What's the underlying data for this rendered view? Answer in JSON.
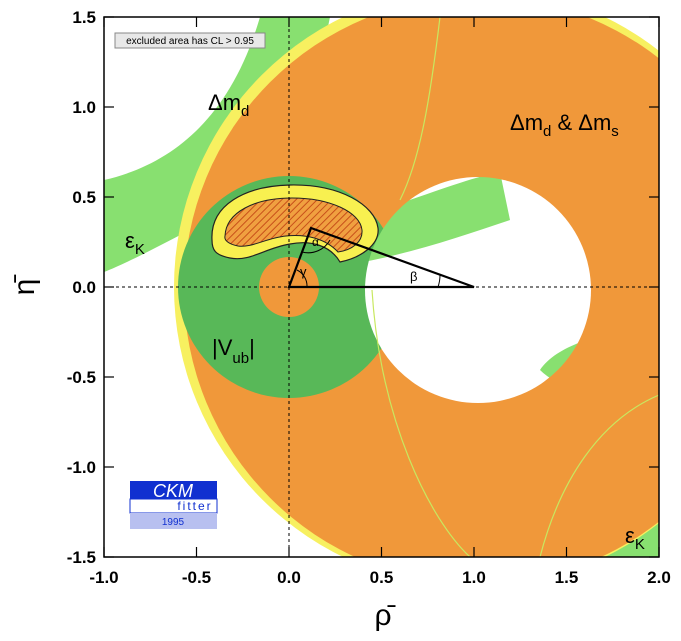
{
  "chart_data": {
    "type": "region",
    "xlabel": "ρ̄",
    "ylabel": "η̄",
    "xlim": [
      -1,
      2
    ],
    "ylim": [
      -1.5,
      1.5
    ],
    "xticks": [
      {
        "value": -1,
        "label": "-1.0"
      },
      {
        "value": -0.5,
        "label": "-0.5"
      },
      {
        "value": 0,
        "label": "0.0"
      },
      {
        "value": 0.5,
        "label": "0.5"
      },
      {
        "value": 1,
        "label": "1.0"
      },
      {
        "value": 1.5,
        "label": "1.5"
      },
      {
        "value": 2,
        "label": "2.0"
      }
    ],
    "yticks": [
      {
        "value": -1.5,
        "label": "-1.5"
      },
      {
        "value": -1,
        "label": "-1.0"
      },
      {
        "value": -0.5,
        "label": "-0.5"
      },
      {
        "value": 0,
        "label": "0.0"
      },
      {
        "value": 0.5,
        "label": "0.5"
      },
      {
        "value": 1,
        "label": "1.0"
      },
      {
        "value": 1.5,
        "label": "1.5"
      }
    ],
    "annotations": {
      "legend_note": "excluded area has CL > 0.95",
      "dmd": [
        "Δm",
        "d"
      ],
      "dmd_dms": [
        "Δm",
        "d",
        " & Δm",
        "s"
      ],
      "epsk_left": [
        "ε",
        "K"
      ],
      "epsk_right": [
        "ε",
        "K"
      ],
      "vub": [
        "|V",
        "ub",
        "|"
      ],
      "alpha": "α",
      "beta": "β",
      "gamma": "γ"
    },
    "logo": {
      "name": "CKM",
      "sub": "fitter",
      "year": "1995"
    }
  }
}
